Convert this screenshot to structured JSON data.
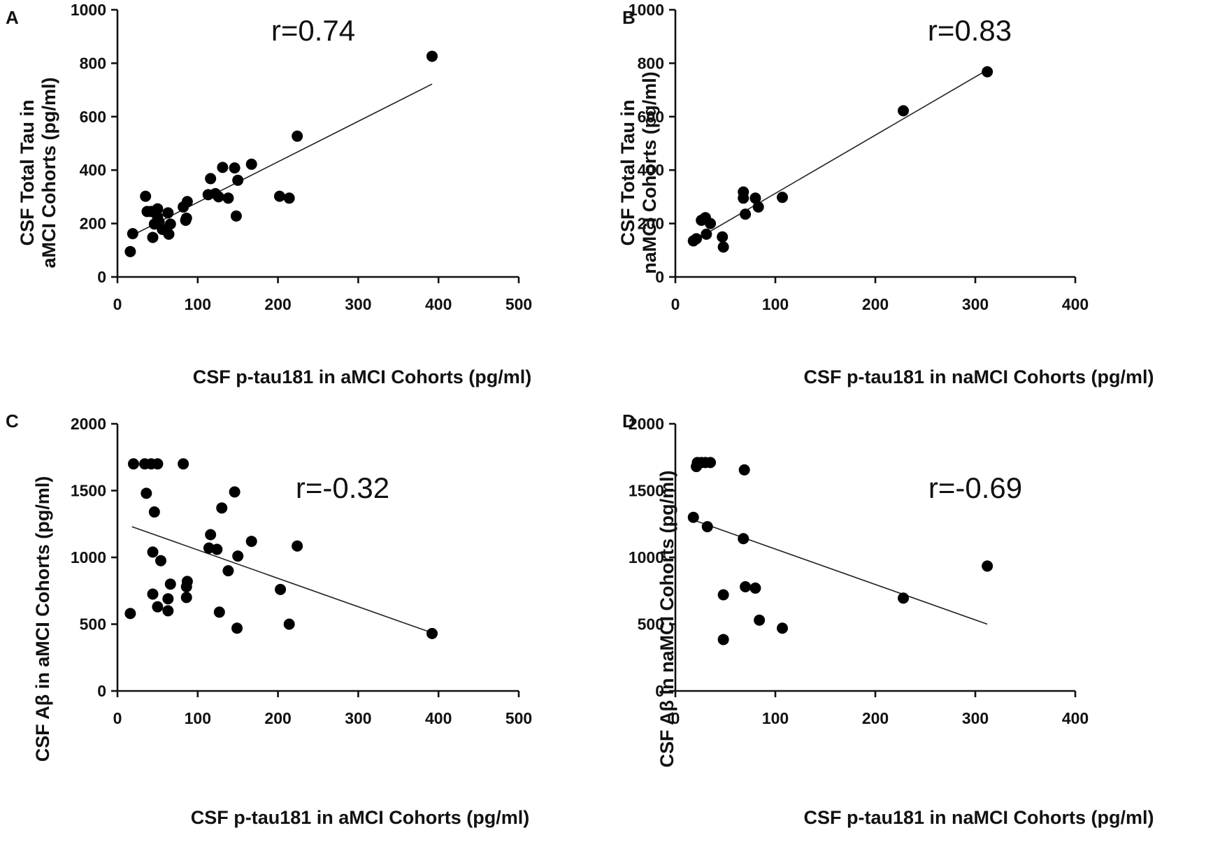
{
  "chart_data": [
    {
      "type": "scatter",
      "panel": "A",
      "annotation": "r=0.74",
      "xlabel": "CSF p-tau181 in aMCI Cohorts (pg/ml)",
      "ylabel_line1": "CSF Total Tau in",
      "ylabel_line2": "aMCI Cohorts (pg/ml)",
      "xlim": [
        0,
        500
      ],
      "ylim": [
        0,
        1000
      ],
      "xticks": [
        0,
        100,
        200,
        300,
        400,
        500
      ],
      "yticks": [
        0,
        200,
        400,
        600,
        800,
        1000
      ],
      "x": [
        16,
        19,
        35,
        37,
        42,
        44,
        46,
        50,
        50,
        52,
        56,
        63,
        64,
        66,
        82,
        85,
        86,
        87,
        113,
        116,
        122,
        126,
        131,
        138,
        146,
        148,
        150,
        167,
        202,
        214,
        224,
        392
      ],
      "y": [
        95,
        162,
        302,
        245,
        245,
        148,
        198,
        255,
        225,
        205,
        178,
        240,
        160,
        198,
        262,
        212,
        220,
        282,
        308,
        368,
        312,
        300,
        410,
        295,
        408,
        228,
        362,
        422,
        302,
        295,
        527,
        826
      ],
      "fit": {
        "x": [
          20,
          392
        ],
        "y": [
          158,
          722
        ]
      }
    },
    {
      "type": "scatter",
      "panel": "B",
      "annotation": "r=0.83",
      "xlabel": "CSF p-tau181 in naMCI Cohorts (pg/ml)",
      "ylabel_line1": "CSF Total Tau in",
      "ylabel_line2": "naMCI Cohorts (pg/ml)",
      "xlim": [
        0,
        400
      ],
      "ylim": [
        0,
        1000
      ],
      "xticks": [
        0,
        100,
        200,
        300,
        400
      ],
      "yticks": [
        0,
        200,
        400,
        600,
        800,
        1000
      ],
      "x": [
        18,
        21,
        26,
        30,
        31,
        35,
        47,
        48,
        68,
        68,
        70,
        80,
        83,
        107,
        228,
        312
      ],
      "y": [
        135,
        143,
        212,
        222,
        160,
        200,
        150,
        112,
        318,
        295,
        235,
        295,
        262,
        298,
        622,
        768
      ],
      "fit": {
        "x": [
          18,
          312
        ],
        "y": [
          134,
          775
        ]
      }
    },
    {
      "type": "scatter",
      "panel": "C",
      "annotation": "r=-0.32",
      "xlabel": "CSF p-tau181 in aMCI Cohorts (pg/ml)",
      "ylabel": "CSF Aβ in aMCI Cohorts (pg/ml)",
      "xlim": [
        0,
        500
      ],
      "ylim": [
        0,
        2000
      ],
      "xticks": [
        0,
        100,
        200,
        300,
        400,
        500
      ],
      "yticks": [
        0,
        500,
        1000,
        1500,
        2000
      ],
      "x": [
        16,
        20,
        34,
        36,
        42,
        44,
        44,
        46,
        50,
        50,
        54,
        63,
        63,
        66,
        82,
        86,
        86,
        87,
        114,
        116,
        124,
        127,
        130,
        138,
        146,
        149,
        150,
        167,
        203,
        214,
        224,
        392
      ],
      "y": [
        580,
        1700,
        1700,
        1480,
        1700,
        1040,
        725,
        1340,
        1700,
        630,
        975,
        690,
        600,
        800,
        1700,
        780,
        700,
        820,
        1070,
        1170,
        1060,
        590,
        1370,
        900,
        1490,
        470,
        1010,
        1120,
        760,
        500,
        1085,
        430
      ],
      "fit": {
        "x": [
          18,
          392
        ],
        "y": [
          1230,
          435
        ]
      }
    },
    {
      "type": "scatter",
      "panel": "D",
      "annotation": "r=-0.69",
      "xlabel": "CSF p-tau181 in naMCI Cohorts (pg/ml)",
      "ylabel": "CSF Aβ in naMCI Cohorts (pg/ml)",
      "xlim": [
        0,
        400
      ],
      "ylim": [
        0,
        2000
      ],
      "xticks": [
        0,
        100,
        200,
        300,
        400
      ],
      "yticks": [
        0,
        500,
        1000,
        1500,
        2000
      ],
      "x": [
        18,
        21,
        22,
        26,
        30,
        32,
        35,
        48,
        48,
        68,
        69,
        70,
        80,
        84,
        107,
        228,
        312
      ],
      "y": [
        1300,
        1680,
        1710,
        1710,
        1710,
        1230,
        1710,
        720,
        385,
        1140,
        1655,
        780,
        770,
        530,
        470,
        695,
        935
      ],
      "fit": {
        "x": [
          18,
          312
        ],
        "y": [
          1280,
          500
        ]
      }
    }
  ]
}
